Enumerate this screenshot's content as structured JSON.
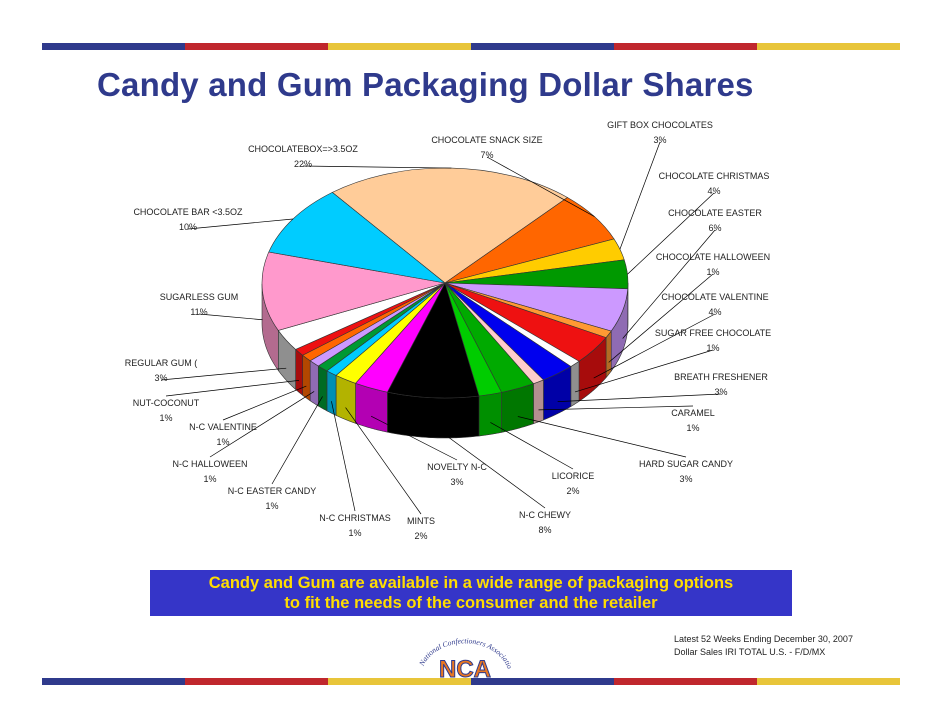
{
  "title": "Candy and Gum Packaging Dollar Shares",
  "banner": {
    "line1": "Candy and Gum are available in a wide range of packaging options",
    "line2": "to fit the needs of the consumer and the retailer"
  },
  "source": {
    "line1": "Latest 52 Weeks Ending December 30, 2007",
    "line2": "Dollar Sales IRI TOTAL U.S. - F/D/MX"
  },
  "logo": {
    "arc_text": "National Confectioners Association",
    "letters": "NCA"
  },
  "stripe_colors": [
    "#2f3a8c",
    "#c0272d",
    "#e8c53a",
    "#2f3a8c",
    "#c0272d",
    "#e8c53a"
  ],
  "chart_data": {
    "type": "pie",
    "title": "",
    "slices": [
      {
        "label": "CHOCOLATEBOX=>3.5OZ",
        "value_label": "22%",
        "value": 22,
        "color": "#ffcc99"
      },
      {
        "label": "CHOCOLATE  SNACK SIZE",
        "value_label": "7%",
        "value": 7,
        "color": "#ff6600"
      },
      {
        "label": "GIFT BOX CHOCOLATES",
        "value_label": "3%",
        "value": 3,
        "color": "#ffcc00"
      },
      {
        "label": "CHOCOLATE CHRISTMAS",
        "value_label": "4%",
        "value": 4,
        "color": "#009900"
      },
      {
        "label": "CHOCOLATE EASTER",
        "value_label": "6%",
        "value": 6,
        "color": "#cc99ff"
      },
      {
        "label": "CHOCOLATE HALLOWEEN",
        "value_label": "1%",
        "value": 1,
        "color": "#ff9933"
      },
      {
        "label": "CHOCOLATE VALENTINE",
        "value_label": "4%",
        "value": 4,
        "color": "#ee1111"
      },
      {
        "label": "SUGAR FREE CHOCOLATE",
        "value_label": "1%",
        "value": 1,
        "color": "#ffffff"
      },
      {
        "label": "BREATH FRESHENER",
        "value_label": "3%",
        "value": 3,
        "color": "#0000ee"
      },
      {
        "label": "CARAMEL",
        "value_label": "1%",
        "value": 1,
        "color": "#ffcccc"
      },
      {
        "label": "HARD SUGAR CANDY",
        "value_label": "3%",
        "value": 3,
        "color": "#00aa00"
      },
      {
        "label": "LICORICE",
        "value_label": "2%",
        "value": 2,
        "color": "#00cc00"
      },
      {
        "label": "N-C CHEWY",
        "value_label": "8%",
        "value": 8,
        "color": "#000000"
      },
      {
        "label": "NOVELTY N-C",
        "value_label": "3%",
        "value": 3,
        "color": "#ff00ff"
      },
      {
        "label": "MINTS",
        "value_label": "2%",
        "value": 2,
        "color": "#ffff00"
      },
      {
        "label": "N-C CHRISTMAS",
        "value_label": "1%",
        "value": 1,
        "color": "#00ccff"
      },
      {
        "label": "N-C EASTER CANDY",
        "value_label": "1%",
        "value": 1,
        "color": "#009933"
      },
      {
        "label": "N-C HALLOWEEN",
        "value_label": "1%",
        "value": 1,
        "color": "#cc99ff"
      },
      {
        "label": "N-C  VALENTINE",
        "value_label": "1%",
        "value": 1,
        "color": "#ff6600"
      },
      {
        "label": "NUT-COCONUT",
        "value_label": "1%",
        "value": 1,
        "color": "#ee1111"
      },
      {
        "label": "REGULAR GUM (",
        "value_label": "3%",
        "value": 3,
        "color": "#ffffff"
      },
      {
        "label": "SUGARLESS GUM",
        "value_label": "11%",
        "value": 11,
        "color": "#ff99cc"
      },
      {
        "label": "CHOCOLATE  BAR <3.5OZ",
        "value_label": "10%",
        "value": 10,
        "color": "#00ccff"
      }
    ]
  }
}
